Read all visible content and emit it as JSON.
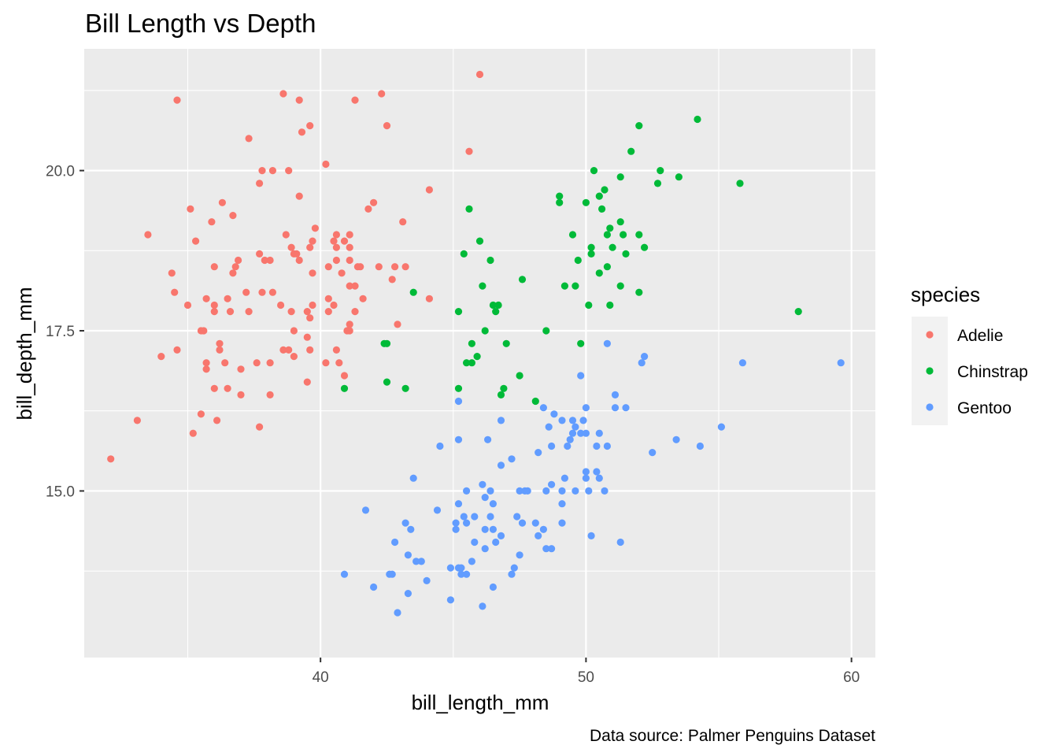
{
  "chart_data": {
    "type": "scatter",
    "title": "Bill Length vs Depth",
    "xlabel": "bill_length_mm",
    "ylabel": "bill_depth_mm",
    "caption": "Data source: Palmer Penguins Dataset",
    "xlim": [
      31.1,
      60.9
    ],
    "ylim": [
      12.4,
      21.9
    ],
    "x_ticks": [
      40,
      50,
      60
    ],
    "x_tick_labels": [
      "40",
      "50",
      "60"
    ],
    "y_ticks": [
      15.0,
      17.5,
      20.0
    ],
    "y_tick_labels": [
      "15.0",
      "17.5",
      "20.0"
    ],
    "grid": true,
    "legend": {
      "title": "species",
      "position": "right"
    },
    "series": [
      {
        "name": "Adelie",
        "color": "#F8766D",
        "points": [
          [
            32.1,
            15.5
          ],
          [
            33.1,
            16.1
          ],
          [
            33.5,
            19.0
          ],
          [
            34.0,
            17.1
          ],
          [
            34.4,
            18.4
          ],
          [
            34.5,
            18.1
          ],
          [
            34.6,
            21.1
          ],
          [
            34.6,
            17.2
          ],
          [
            35.0,
            17.9
          ],
          [
            35.1,
            19.4
          ],
          [
            35.2,
            15.9
          ],
          [
            35.3,
            18.9
          ],
          [
            35.5,
            16.2
          ],
          [
            35.5,
            17.5
          ],
          [
            35.6,
            17.5
          ],
          [
            35.7,
            16.9
          ],
          [
            35.7,
            17.0
          ],
          [
            35.7,
            18.0
          ],
          [
            35.9,
            19.2
          ],
          [
            36.0,
            16.6
          ],
          [
            36.0,
            17.8
          ],
          [
            36.0,
            17.9
          ],
          [
            36.0,
            18.5
          ],
          [
            36.1,
            16.1
          ],
          [
            36.2,
            17.3
          ],
          [
            36.2,
            17.2
          ],
          [
            36.3,
            19.5
          ],
          [
            36.4,
            17.0
          ],
          [
            36.5,
            16.6
          ],
          [
            36.5,
            18.0
          ],
          [
            36.6,
            17.8
          ],
          [
            36.7,
            18.4
          ],
          [
            36.7,
            19.3
          ],
          [
            36.8,
            18.5
          ],
          [
            36.9,
            18.6
          ],
          [
            37.0,
            16.5
          ],
          [
            37.0,
            16.9
          ],
          [
            37.2,
            18.1
          ],
          [
            37.3,
            17.8
          ],
          [
            37.3,
            20.5
          ],
          [
            37.6,
            17.0
          ],
          [
            37.7,
            16.0
          ],
          [
            37.7,
            18.7
          ],
          [
            37.7,
            19.8
          ],
          [
            37.8,
            18.1
          ],
          [
            37.8,
            20.0
          ],
          [
            37.9,
            18.6
          ],
          [
            38.1,
            16.5
          ],
          [
            38.1,
            17.0
          ],
          [
            38.1,
            18.6
          ],
          [
            38.2,
            18.1
          ],
          [
            38.2,
            20.0
          ],
          [
            38.5,
            17.9
          ],
          [
            38.6,
            17.2
          ],
          [
            38.6,
            21.2
          ],
          [
            38.7,
            19.0
          ],
          [
            38.8,
            17.2
          ],
          [
            38.8,
            20.0
          ],
          [
            38.9,
            17.8
          ],
          [
            38.9,
            18.8
          ],
          [
            39.0,
            17.1
          ],
          [
            39.0,
            17.5
          ],
          [
            39.0,
            18.7
          ],
          [
            39.1,
            18.7
          ],
          [
            39.2,
            18.6
          ],
          [
            39.2,
            19.6
          ],
          [
            39.2,
            21.1
          ],
          [
            39.3,
            20.6
          ],
          [
            39.5,
            16.7
          ],
          [
            39.5,
            17.4
          ],
          [
            39.5,
            17.8
          ],
          [
            39.6,
            17.2
          ],
          [
            39.6,
            17.7
          ],
          [
            39.6,
            18.8
          ],
          [
            39.6,
            20.7
          ],
          [
            39.7,
            17.9
          ],
          [
            39.7,
            18.4
          ],
          [
            39.7,
            18.9
          ],
          [
            39.8,
            19.1
          ],
          [
            40.2,
            17.0
          ],
          [
            40.2,
            20.1
          ],
          [
            40.3,
            17.8
          ],
          [
            40.3,
            18.0
          ],
          [
            40.3,
            18.5
          ],
          [
            40.5,
            17.9
          ],
          [
            40.5,
            18.9
          ],
          [
            40.6,
            17.2
          ],
          [
            40.6,
            18.6
          ],
          [
            40.6,
            18.8
          ],
          [
            40.6,
            19.0
          ],
          [
            40.7,
            17.0
          ],
          [
            40.8,
            18.4
          ],
          [
            40.9,
            16.8
          ],
          [
            40.9,
            18.9
          ],
          [
            41.0,
            17.5
          ],
          [
            41.1,
            17.5
          ],
          [
            41.1,
            17.6
          ],
          [
            41.1,
            18.2
          ],
          [
            41.1,
            18.6
          ],
          [
            41.1,
            18.8
          ],
          [
            41.1,
            19.0
          ],
          [
            41.3,
            17.8
          ],
          [
            41.3,
            18.2
          ],
          [
            41.3,
            21.1
          ],
          [
            41.4,
            18.5
          ],
          [
            41.5,
            18.5
          ],
          [
            41.6,
            18.0
          ],
          [
            41.8,
            19.4
          ],
          [
            42.0,
            19.5
          ],
          [
            42.2,
            18.5
          ],
          [
            42.3,
            21.2
          ],
          [
            42.5,
            20.7
          ],
          [
            42.7,
            18.3
          ],
          [
            42.8,
            18.5
          ],
          [
            42.9,
            17.6
          ],
          [
            43.1,
            19.2
          ],
          [
            43.2,
            18.5
          ],
          [
            44.1,
            18.0
          ],
          [
            44.1,
            19.7
          ],
          [
            45.6,
            20.3
          ],
          [
            46.0,
            21.5
          ]
        ]
      },
      {
        "name": "Chinstrap",
        "color": "#00BA38",
        "points": [
          [
            40.9,
            16.6
          ],
          [
            42.4,
            17.3
          ],
          [
            42.5,
            16.7
          ],
          [
            42.5,
            17.3
          ],
          [
            43.2,
            16.6
          ],
          [
            43.5,
            18.1
          ],
          [
            45.2,
            16.6
          ],
          [
            45.2,
            17.8
          ],
          [
            45.4,
            18.7
          ],
          [
            45.5,
            17.0
          ],
          [
            45.6,
            19.4
          ],
          [
            45.7,
            17.0
          ],
          [
            45.7,
            17.3
          ],
          [
            45.9,
            17.1
          ],
          [
            46.0,
            18.9
          ],
          [
            46.1,
            18.2
          ],
          [
            46.2,
            17.5
          ],
          [
            46.4,
            18.6
          ],
          [
            46.5,
            17.9
          ],
          [
            46.6,
            17.8
          ],
          [
            46.7,
            17.9
          ],
          [
            46.8,
            16.5
          ],
          [
            46.9,
            16.6
          ],
          [
            47.0,
            17.3
          ],
          [
            47.5,
            16.8
          ],
          [
            47.6,
            18.3
          ],
          [
            48.1,
            16.4
          ],
          [
            48.5,
            17.5
          ],
          [
            49.0,
            19.5
          ],
          [
            49.0,
            19.6
          ],
          [
            49.2,
            18.2
          ],
          [
            49.5,
            19.0
          ],
          [
            49.6,
            18.2
          ],
          [
            49.7,
            18.6
          ],
          [
            49.8,
            17.3
          ],
          [
            50.0,
            19.5
          ],
          [
            50.1,
            17.9
          ],
          [
            50.2,
            18.7
          ],
          [
            50.2,
            18.8
          ],
          [
            50.3,
            20.0
          ],
          [
            50.5,
            18.4
          ],
          [
            50.5,
            19.6
          ],
          [
            50.6,
            19.4
          ],
          [
            50.7,
            19.7
          ],
          [
            50.8,
            18.5
          ],
          [
            50.8,
            19.0
          ],
          [
            50.9,
            17.9
          ],
          [
            50.9,
            19.1
          ],
          [
            51.0,
            18.8
          ],
          [
            51.3,
            18.2
          ],
          [
            51.3,
            19.2
          ],
          [
            51.3,
            19.9
          ],
          [
            51.4,
            19.0
          ],
          [
            51.5,
            18.7
          ],
          [
            51.7,
            20.3
          ],
          [
            52.0,
            18.1
          ],
          [
            52.0,
            19.0
          ],
          [
            52.0,
            20.7
          ],
          [
            52.2,
            18.8
          ],
          [
            52.7,
            19.8
          ],
          [
            52.8,
            20.0
          ],
          [
            53.5,
            19.9
          ],
          [
            54.2,
            20.8
          ],
          [
            55.8,
            19.8
          ],
          [
            58.0,
            17.8
          ]
        ]
      },
      {
        "name": "Gentoo",
        "color": "#619CFF",
        "points": [
          [
            40.9,
            13.7
          ],
          [
            41.7,
            14.7
          ],
          [
            42.0,
            13.5
          ],
          [
            42.6,
            13.7
          ],
          [
            42.7,
            13.7
          ],
          [
            42.8,
            14.2
          ],
          [
            42.9,
            13.1
          ],
          [
            43.2,
            14.5
          ],
          [
            43.3,
            13.4
          ],
          [
            43.3,
            14.0
          ],
          [
            43.4,
            14.4
          ],
          [
            43.5,
            15.2
          ],
          [
            43.6,
            13.9
          ],
          [
            43.8,
            13.9
          ],
          [
            44.0,
            13.6
          ],
          [
            44.4,
            14.7
          ],
          [
            44.5,
            15.7
          ],
          [
            44.9,
            13.3
          ],
          [
            44.9,
            13.8
          ],
          [
            45.1,
            14.4
          ],
          [
            45.1,
            14.5
          ],
          [
            45.2,
            13.8
          ],
          [
            45.2,
            14.8
          ],
          [
            45.2,
            15.8
          ],
          [
            45.2,
            16.4
          ],
          [
            45.3,
            13.7
          ],
          [
            45.3,
            13.8
          ],
          [
            45.4,
            14.6
          ],
          [
            45.5,
            13.7
          ],
          [
            45.5,
            14.5
          ],
          [
            45.5,
            15.0
          ],
          [
            45.7,
            13.9
          ],
          [
            45.8,
            14.2
          ],
          [
            45.8,
            14.6
          ],
          [
            46.1,
            15.1
          ],
          [
            46.1,
            13.2
          ],
          [
            46.2,
            14.1
          ],
          [
            46.2,
            14.4
          ],
          [
            46.2,
            14.9
          ],
          [
            46.3,
            15.8
          ],
          [
            46.4,
            14.6
          ],
          [
            46.4,
            15.0
          ],
          [
            46.5,
            13.5
          ],
          [
            46.5,
            14.4
          ],
          [
            46.5,
            14.8
          ],
          [
            46.6,
            14.2
          ],
          [
            46.8,
            14.3
          ],
          [
            46.8,
            15.4
          ],
          [
            46.8,
            16.1
          ],
          [
            47.2,
            13.7
          ],
          [
            47.2,
            15.5
          ],
          [
            47.3,
            13.8
          ],
          [
            47.4,
            14.6
          ],
          [
            47.5,
            14.0
          ],
          [
            47.5,
            15.0
          ],
          [
            47.6,
            14.5
          ],
          [
            47.7,
            15.0
          ],
          [
            47.8,
            15.0
          ],
          [
            48.1,
            14.5
          ],
          [
            48.2,
            14.3
          ],
          [
            48.2,
            15.6
          ],
          [
            48.4,
            14.4
          ],
          [
            48.4,
            16.3
          ],
          [
            48.5,
            14.1
          ],
          [
            48.5,
            15.0
          ],
          [
            48.6,
            16.0
          ],
          [
            48.7,
            14.1
          ],
          [
            48.7,
            15.1
          ],
          [
            48.7,
            15.7
          ],
          [
            48.8,
            16.2
          ],
          [
            49.1,
            14.5
          ],
          [
            49.1,
            14.8
          ],
          [
            49.1,
            15.0
          ],
          [
            49.1,
            16.1
          ],
          [
            49.2,
            15.2
          ],
          [
            49.3,
            15.7
          ],
          [
            49.4,
            15.8
          ],
          [
            49.5,
            15.9
          ],
          [
            49.5,
            16.1
          ],
          [
            49.6,
            15.0
          ],
          [
            49.6,
            16.0
          ],
          [
            49.8,
            15.9
          ],
          [
            49.8,
            16.8
          ],
          [
            49.9,
            16.1
          ],
          [
            50.0,
            15.2
          ],
          [
            50.0,
            15.3
          ],
          [
            50.0,
            15.9
          ],
          [
            50.0,
            16.3
          ],
          [
            50.1,
            15.0
          ],
          [
            50.2,
            14.3
          ],
          [
            50.4,
            15.3
          ],
          [
            50.4,
            15.7
          ],
          [
            50.5,
            15.2
          ],
          [
            50.5,
            15.9
          ],
          [
            50.7,
            15.0
          ],
          [
            50.8,
            15.7
          ],
          [
            50.8,
            17.3
          ],
          [
            51.1,
            16.3
          ],
          [
            51.1,
            16.5
          ],
          [
            51.3,
            14.2
          ],
          [
            51.5,
            16.3
          ],
          [
            52.1,
            17.0
          ],
          [
            52.2,
            17.1
          ],
          [
            52.5,
            15.6
          ],
          [
            53.4,
            15.8
          ],
          [
            54.3,
            15.7
          ],
          [
            55.1,
            16.0
          ],
          [
            55.9,
            17.0
          ],
          [
            59.6,
            17.0
          ]
        ]
      }
    ]
  }
}
